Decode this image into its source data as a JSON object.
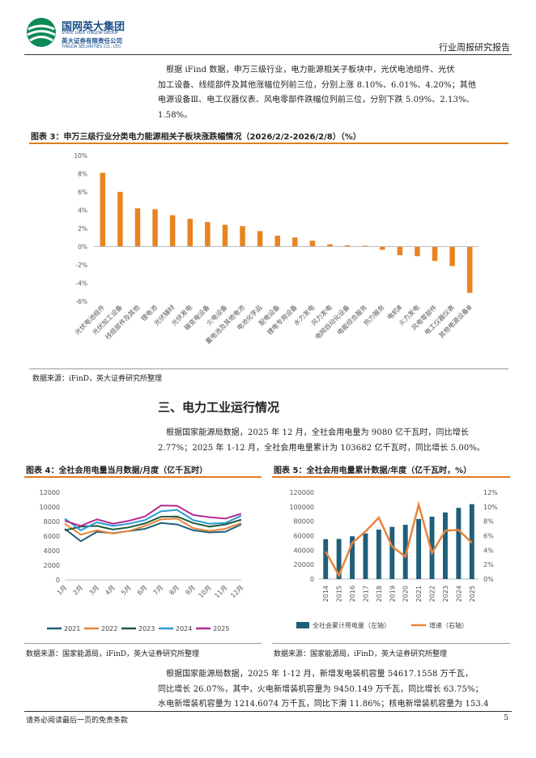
{
  "header": {
    "company_cn": "国网英大集团",
    "company_en": "STATE GRID YINGDA GROUP",
    "sub_cn": "英大证券有限责任公司",
    "sub_en": "YINGDA SECURITIES CO., LTD.",
    "report_type": "行业周报研究报告"
  },
  "para1": [
    "根据 iFind 数据，申万三级行业，电力能源相关子板块中，光伏电池组件、光伏",
    "加工设备、线缆部件及其他涨幅位列前三位，分别上涨 8.10%、6.01%、4.20%；其他",
    "电源设备Ⅲ、电工仪器仪表、风电零部件跌幅位列前三位，分别下跌 5.09%、2.13%、",
    "1.58%。"
  ],
  "fig3": {
    "title": "图表 3：申万三级行业分类电力能源相关子板块涨跌幅情况（2026/2/2-2026/2/8）（%）",
    "source": "数据来源：iFinD，英大证券研究所整理"
  },
  "section3_title": "三、电力工业运行情况",
  "para2": [
    "根据国家能源局数据，2025 年 12 月，全社会用电量为 9080 亿千瓦时，同比增长",
    "2.77%；2025 年 1-12 月，全社会用电量累计为 103682 亿千瓦时，同比增长 5.00%。"
  ],
  "fig4": {
    "title": "图表 4：全社会用电量当月数据/月度（亿千瓦时）",
    "source": "数据来源：国家能源局，iFinD，英大证券研究所整理"
  },
  "fig5": {
    "title": "图表 5：全社会用电量累计数据/年度（亿千瓦时，%）",
    "source": "数据来源：国家能源局，iFinD，英大证券研究所整理"
  },
  "para3": [
    "根据国家能源局数据，2025 年 1-12 月，新增发电装机容量 54617.1558 万千瓦，",
    "同比增长 26.07%，其中，火电新增装机容量为 9450.149 万千瓦，同比增长 63.75%；",
    "水电新增装机容量为 1214.6074 万千瓦，同比下滑 11.86%；核电新增装机容量为 153.4"
  ],
  "footer": {
    "disclaimer": "请务必阅读最后一页的免责条款",
    "page": "5"
  },
  "chart_data": [
    {
      "type": "bar",
      "title": "申万三级行业分类电力能源相关子板块涨跌幅情况（2026/2/2-2026/2/8）（%）",
      "categories": [
        "光伏电池组件",
        "光伏加工设备",
        "线缆部件及其他",
        "锂电池",
        "光伏辅材",
        "光伏发电",
        "输变电设备",
        "火电设备",
        "蓄电池及其他电池",
        "电池化学品",
        "配电设备",
        "锂电专用设备",
        "水力发电",
        "风力发电",
        "电网自动化设备",
        "电能综合服务",
        "热力服务",
        "电机Ⅲ",
        "火力发电",
        "风电零部件",
        "电工仪器仪表",
        "其他电源设备Ⅲ"
      ],
      "values": [
        8.1,
        6.01,
        4.2,
        4.1,
        3.45,
        3.05,
        2.7,
        2.4,
        2.25,
        1.7,
        1.2,
        1.0,
        0.65,
        0.25,
        0.15,
        0.1,
        -0.35,
        -0.95,
        -1.05,
        -1.58,
        -2.13,
        -5.09
      ],
      "ylim": [
        -6,
        10
      ],
      "yticks": [
        "10%",
        "8%",
        "6%",
        "4%",
        "2%",
        "0%",
        "-2%",
        "-4%",
        "-6%"
      ],
      "color": "#e8841f"
    },
    {
      "type": "line",
      "title": "全社会用电量当月数据/月度（亿千瓦时）",
      "categories": [
        "1月",
        "2月",
        "3月",
        "4月",
        "5月",
        "6月",
        "7月",
        "8月",
        "9月",
        "10月",
        "11月",
        "12月"
      ],
      "ylim": [
        0,
        12000
      ],
      "yticks": [
        "12000",
        "10000",
        "8000",
        "6000",
        "4000",
        "2000",
        "0"
      ],
      "series": [
        {
          "name": "2021",
          "color": "#1f5f7a",
          "values": [
            7000,
            5300,
            6600,
            6400,
            6700,
            7000,
            7800,
            7600,
            6800,
            6500,
            6600,
            7600
          ]
        },
        {
          "name": "2022",
          "color": "#e8843c",
          "values": [
            7700,
            6200,
            6800,
            6350,
            6700,
            7400,
            8300,
            8400,
            7100,
            6700,
            7000,
            7800
          ]
        },
        {
          "name": "2023",
          "color": "#1e5a3a",
          "values": [
            6800,
            7300,
            7400,
            6900,
            7200,
            7750,
            8660,
            8700,
            7800,
            7300,
            7600,
            8250
          ]
        },
        {
          "name": "2024",
          "color": "#2a9ad6",
          "values": [
            8400,
            6800,
            7900,
            7400,
            7700,
            8200,
            9400,
            9600,
            8200,
            7700,
            7800,
            8800
          ]
        },
        {
          "name": "2025",
          "color": "#b52a8f",
          "values": [
            8100,
            7400,
            8300,
            7700,
            8100,
            8700,
            10200,
            10150,
            8900,
            8600,
            8400,
            9080
          ]
        }
      ]
    },
    {
      "type": "bar",
      "title": "全社会用电量累计数据/年度（亿千瓦时，%）",
      "categories": [
        "2014",
        "2015",
        "2016",
        "2017",
        "2018",
        "2019",
        "2020",
        "2021",
        "2022",
        "2023",
        "2024",
        "2025"
      ],
      "series": [
        {
          "name": "全社会累计用电量（左轴）",
          "type": "bar",
          "color": "#1f5f7a",
          "values": [
            55233,
            55500,
            59198,
            63077,
            68449,
            72255,
            75110,
            83128,
            86372,
            92241,
            98521,
            103682
          ]
        },
        {
          "name": "增速（右轴）",
          "type": "line",
          "color": "#e8843c",
          "values": [
            3.8,
            0.5,
            5.0,
            6.6,
            8.5,
            4.5,
            3.1,
            10.3,
            3.6,
            6.7,
            6.8,
            5.0
          ]
        }
      ],
      "ylim_left": [
        0,
        120000
      ],
      "ylim_right": [
        0,
        12
      ],
      "yticks_left": [
        "120000",
        "100000",
        "80000",
        "60000",
        "40000",
        "20000",
        "0"
      ],
      "yticks_right": [
        "12%",
        "10%",
        "8%",
        "6%",
        "4%",
        "2%",
        "0%"
      ]
    }
  ]
}
